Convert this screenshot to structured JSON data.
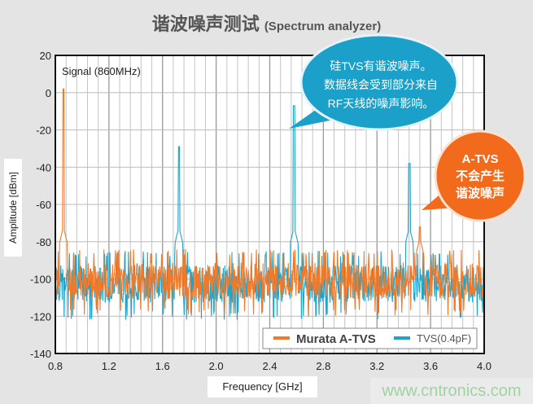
{
  "title": {
    "zh": "谐波噪声测试",
    "en": "(Spectrum analyzer)"
  },
  "annotations": {
    "signal": "Signal (860MHz)",
    "blue_bubble": [
      "硅TVS有谐波噪声。",
      "数据线会受到部分来自",
      "RF天线的噪声影响。"
    ],
    "orange_bubble": [
      "A-TVS",
      "不会产生",
      "谐波噪声"
    ]
  },
  "watermark": "www.cntronics.com",
  "colors": {
    "murata": "#f07a2a",
    "tvs": "#1fa3c8",
    "blue_bubble": "#1ba0c9",
    "orange_bubble": "#f26a1b"
  },
  "chart_data": {
    "type": "line",
    "xlabel": "Frequency [GHz]",
    "ylabel": "Amplitude [dBm]",
    "xlim": [
      0.8,
      4.0
    ],
    "ylim": [
      -140,
      20
    ],
    "xticks": [
      "0.8",
      "1.2",
      "1.6",
      "2.0",
      "2.4",
      "2.8",
      "3.2",
      "3.6",
      "4.0"
    ],
    "yticks": [
      "20",
      "0",
      "-20",
      "-40",
      "-60",
      "-80",
      "-100",
      "-120",
      "-140"
    ],
    "grid": true,
    "legend": "bottom-right",
    "series": [
      {
        "name": "Murata A-TVS",
        "color": "#f07a2a",
        "noise_floor": [
          -120,
          -84
        ],
        "peaks": [
          {
            "x": 0.86,
            "y": 2
          },
          {
            "x": 3.52,
            "y": -72
          }
        ]
      },
      {
        "name": "TVS(0.4pF)",
        "color": "#1fa3c8",
        "noise_floor": [
          -122,
          -85
        ],
        "peaks": [
          {
            "x": 1.72,
            "y": -29
          },
          {
            "x": 2.58,
            "y": -7
          },
          {
            "x": 3.44,
            "y": -38
          }
        ]
      }
    ]
  }
}
